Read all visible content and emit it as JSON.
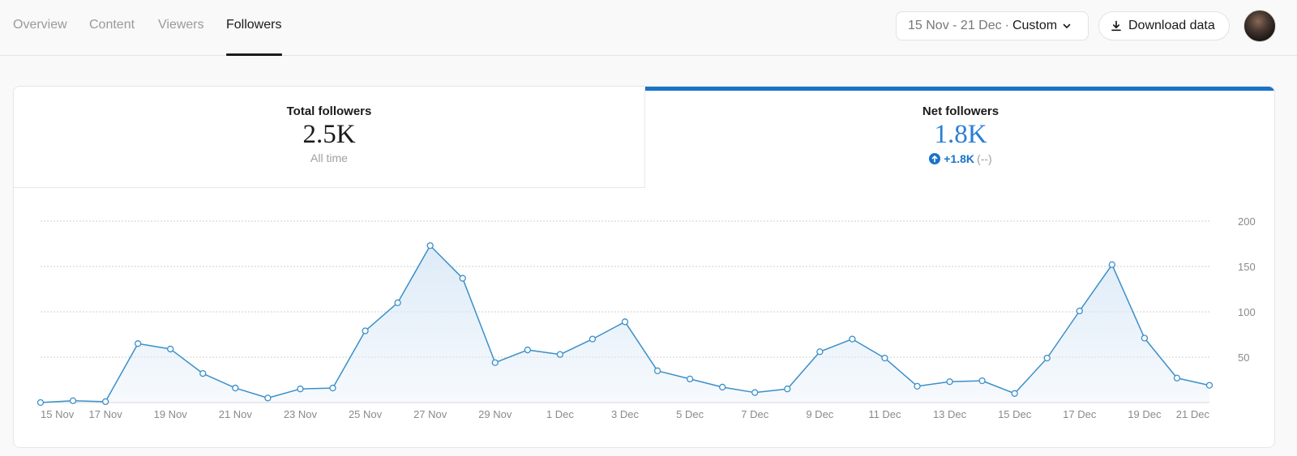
{
  "tabs": [
    {
      "label": "Overview",
      "active": false
    },
    {
      "label": "Content",
      "active": false
    },
    {
      "label": "Viewers",
      "active": false
    },
    {
      "label": "Followers",
      "active": true
    }
  ],
  "date_range": {
    "range": "15 Nov - 21 Dec",
    "separator": "·",
    "preset": "Custom"
  },
  "download_label": "Download data",
  "stats": {
    "total": {
      "title": "Total followers",
      "value": "2.5K",
      "sub": "All time"
    },
    "net": {
      "title": "Net followers",
      "value": "1.8K",
      "change": "+1.8K",
      "change_pct": "(--)"
    }
  },
  "colors": {
    "accent": "#1a73c8",
    "line": "#3b8fc9",
    "area": "#dceaf7"
  },
  "chart_data": {
    "type": "area",
    "x": [
      "15 Nov",
      "16 Nov",
      "17 Nov",
      "18 Nov",
      "19 Nov",
      "20 Nov",
      "21 Nov",
      "22 Nov",
      "23 Nov",
      "24 Nov",
      "25 Nov",
      "26 Nov",
      "27 Nov",
      "28 Nov",
      "29 Nov",
      "30 Nov",
      "1 Dec",
      "2 Dec",
      "3 Dec",
      "4 Dec",
      "5 Dec",
      "6 Dec",
      "7 Dec",
      "8 Dec",
      "9 Dec",
      "10 Dec",
      "11 Dec",
      "12 Dec",
      "13 Dec",
      "14 Dec",
      "15 Dec",
      "16 Dec",
      "17 Dec",
      "18 Dec",
      "19 Dec",
      "20 Dec",
      "21 Dec"
    ],
    "series": [
      {
        "values": [
          0,
          2,
          1,
          65,
          59,
          32,
          16,
          5,
          15,
          16,
          79,
          110,
          173,
          137,
          44,
          58,
          53,
          70,
          89,
          35,
          26,
          17,
          11,
          15,
          56,
          70,
          49,
          18,
          23,
          24,
          10,
          49,
          101,
          152,
          71,
          27,
          19
        ]
      }
    ],
    "x_tick_labels": [
      "15 Nov",
      "17 Nov",
      "19 Nov",
      "21 Nov",
      "23 Nov",
      "25 Nov",
      "27 Nov",
      "29 Nov",
      "1 Dec",
      "3 Dec",
      "5 Dec",
      "7 Dec",
      "9 Dec",
      "11 Dec",
      "13 Dec",
      "15 Dec",
      "17 Dec",
      "19 Dec",
      "21 Dec"
    ],
    "y_ticks": [
      50,
      100,
      150,
      200
    ],
    "ylim": [
      0,
      200
    ],
    "grid": true,
    "y_axis_side": "right"
  }
}
